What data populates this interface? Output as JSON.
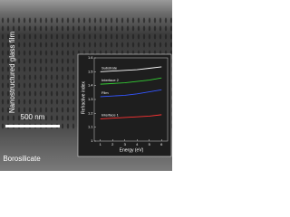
{
  "figure": {
    "film_label": "Nanostructured glass film",
    "scale_bar": "500 nm",
    "substrate_label": "Borosilicate"
  },
  "chart_data": {
    "type": "line",
    "x_label": "Energy (eV)",
    "y_label": "Refractive index",
    "x": [
      1,
      2,
      3,
      4,
      5,
      6
    ],
    "series": [
      {
        "name": "Substrate",
        "color": "#ffffff",
        "values": [
          1.5,
          1.505,
          1.51,
          1.515,
          1.525,
          1.535
        ]
      },
      {
        "name": "Interface 2",
        "color": "#33cc33",
        "values": [
          1.41,
          1.415,
          1.42,
          1.43,
          1.44,
          1.455
        ]
      },
      {
        "name": "Film",
        "color": "#3355ff",
        "values": [
          1.32,
          1.325,
          1.33,
          1.34,
          1.355,
          1.37
        ]
      },
      {
        "name": "Interface 1",
        "color": "#ff3333",
        "values": [
          1.16,
          1.165,
          1.17,
          1.175,
          1.18,
          1.19
        ]
      }
    ],
    "xlim": [
      0.5,
      6.5
    ],
    "xticks": [
      1,
      2,
      3,
      4,
      5,
      6
    ],
    "ylim": [
      1.0,
      1.6
    ],
    "yticks": [
      1.0,
      1.1,
      1.2,
      1.3,
      1.4,
      1.5,
      1.6
    ]
  }
}
